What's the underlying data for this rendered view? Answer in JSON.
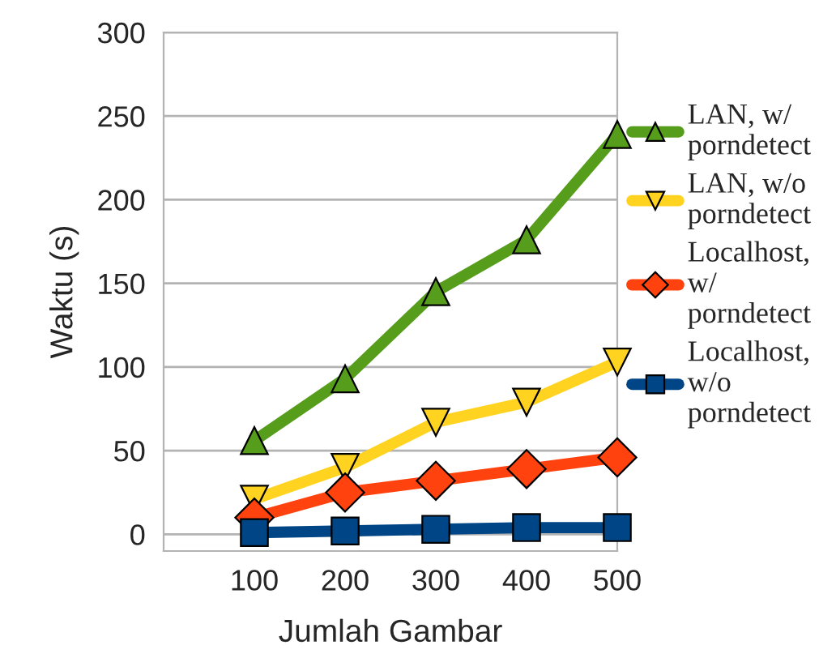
{
  "chart_data": {
    "type": "line",
    "xlabel": "Jumlah Gambar",
    "ylabel": "Waktu (s)",
    "x": [
      100,
      200,
      300,
      400,
      500
    ],
    "xlim": [
      0,
      500
    ],
    "xticks": [
      100,
      200,
      300,
      400,
      500
    ],
    "ylim": [
      -10,
      300
    ],
    "yticks": [
      0,
      50,
      100,
      150,
      200,
      250,
      300
    ],
    "grid": "y",
    "legend": "right",
    "line_style": "solid",
    "series": [
      {
        "name": "LAN, w/ porndetect",
        "color": "#579d1c",
        "marker": "triangle",
        "values": [
          56,
          93,
          145,
          176,
          239
        ]
      },
      {
        "name": "LAN, w/o porndetect",
        "color": "#ffd320",
        "marker": "triangle_down",
        "values": [
          21,
          40,
          67,
          79,
          103
        ]
      },
      {
        "name": "Localhost, w/ porndetect",
        "color": "#ff420e",
        "marker": "diamond",
        "values": [
          10,
          25,
          32,
          39,
          46
        ]
      },
      {
        "name": "Localhost, w/o porndetect",
        "color": "#004586",
        "marker": "square",
        "values": [
          1,
          2,
          3,
          4,
          4
        ]
      }
    ]
  }
}
